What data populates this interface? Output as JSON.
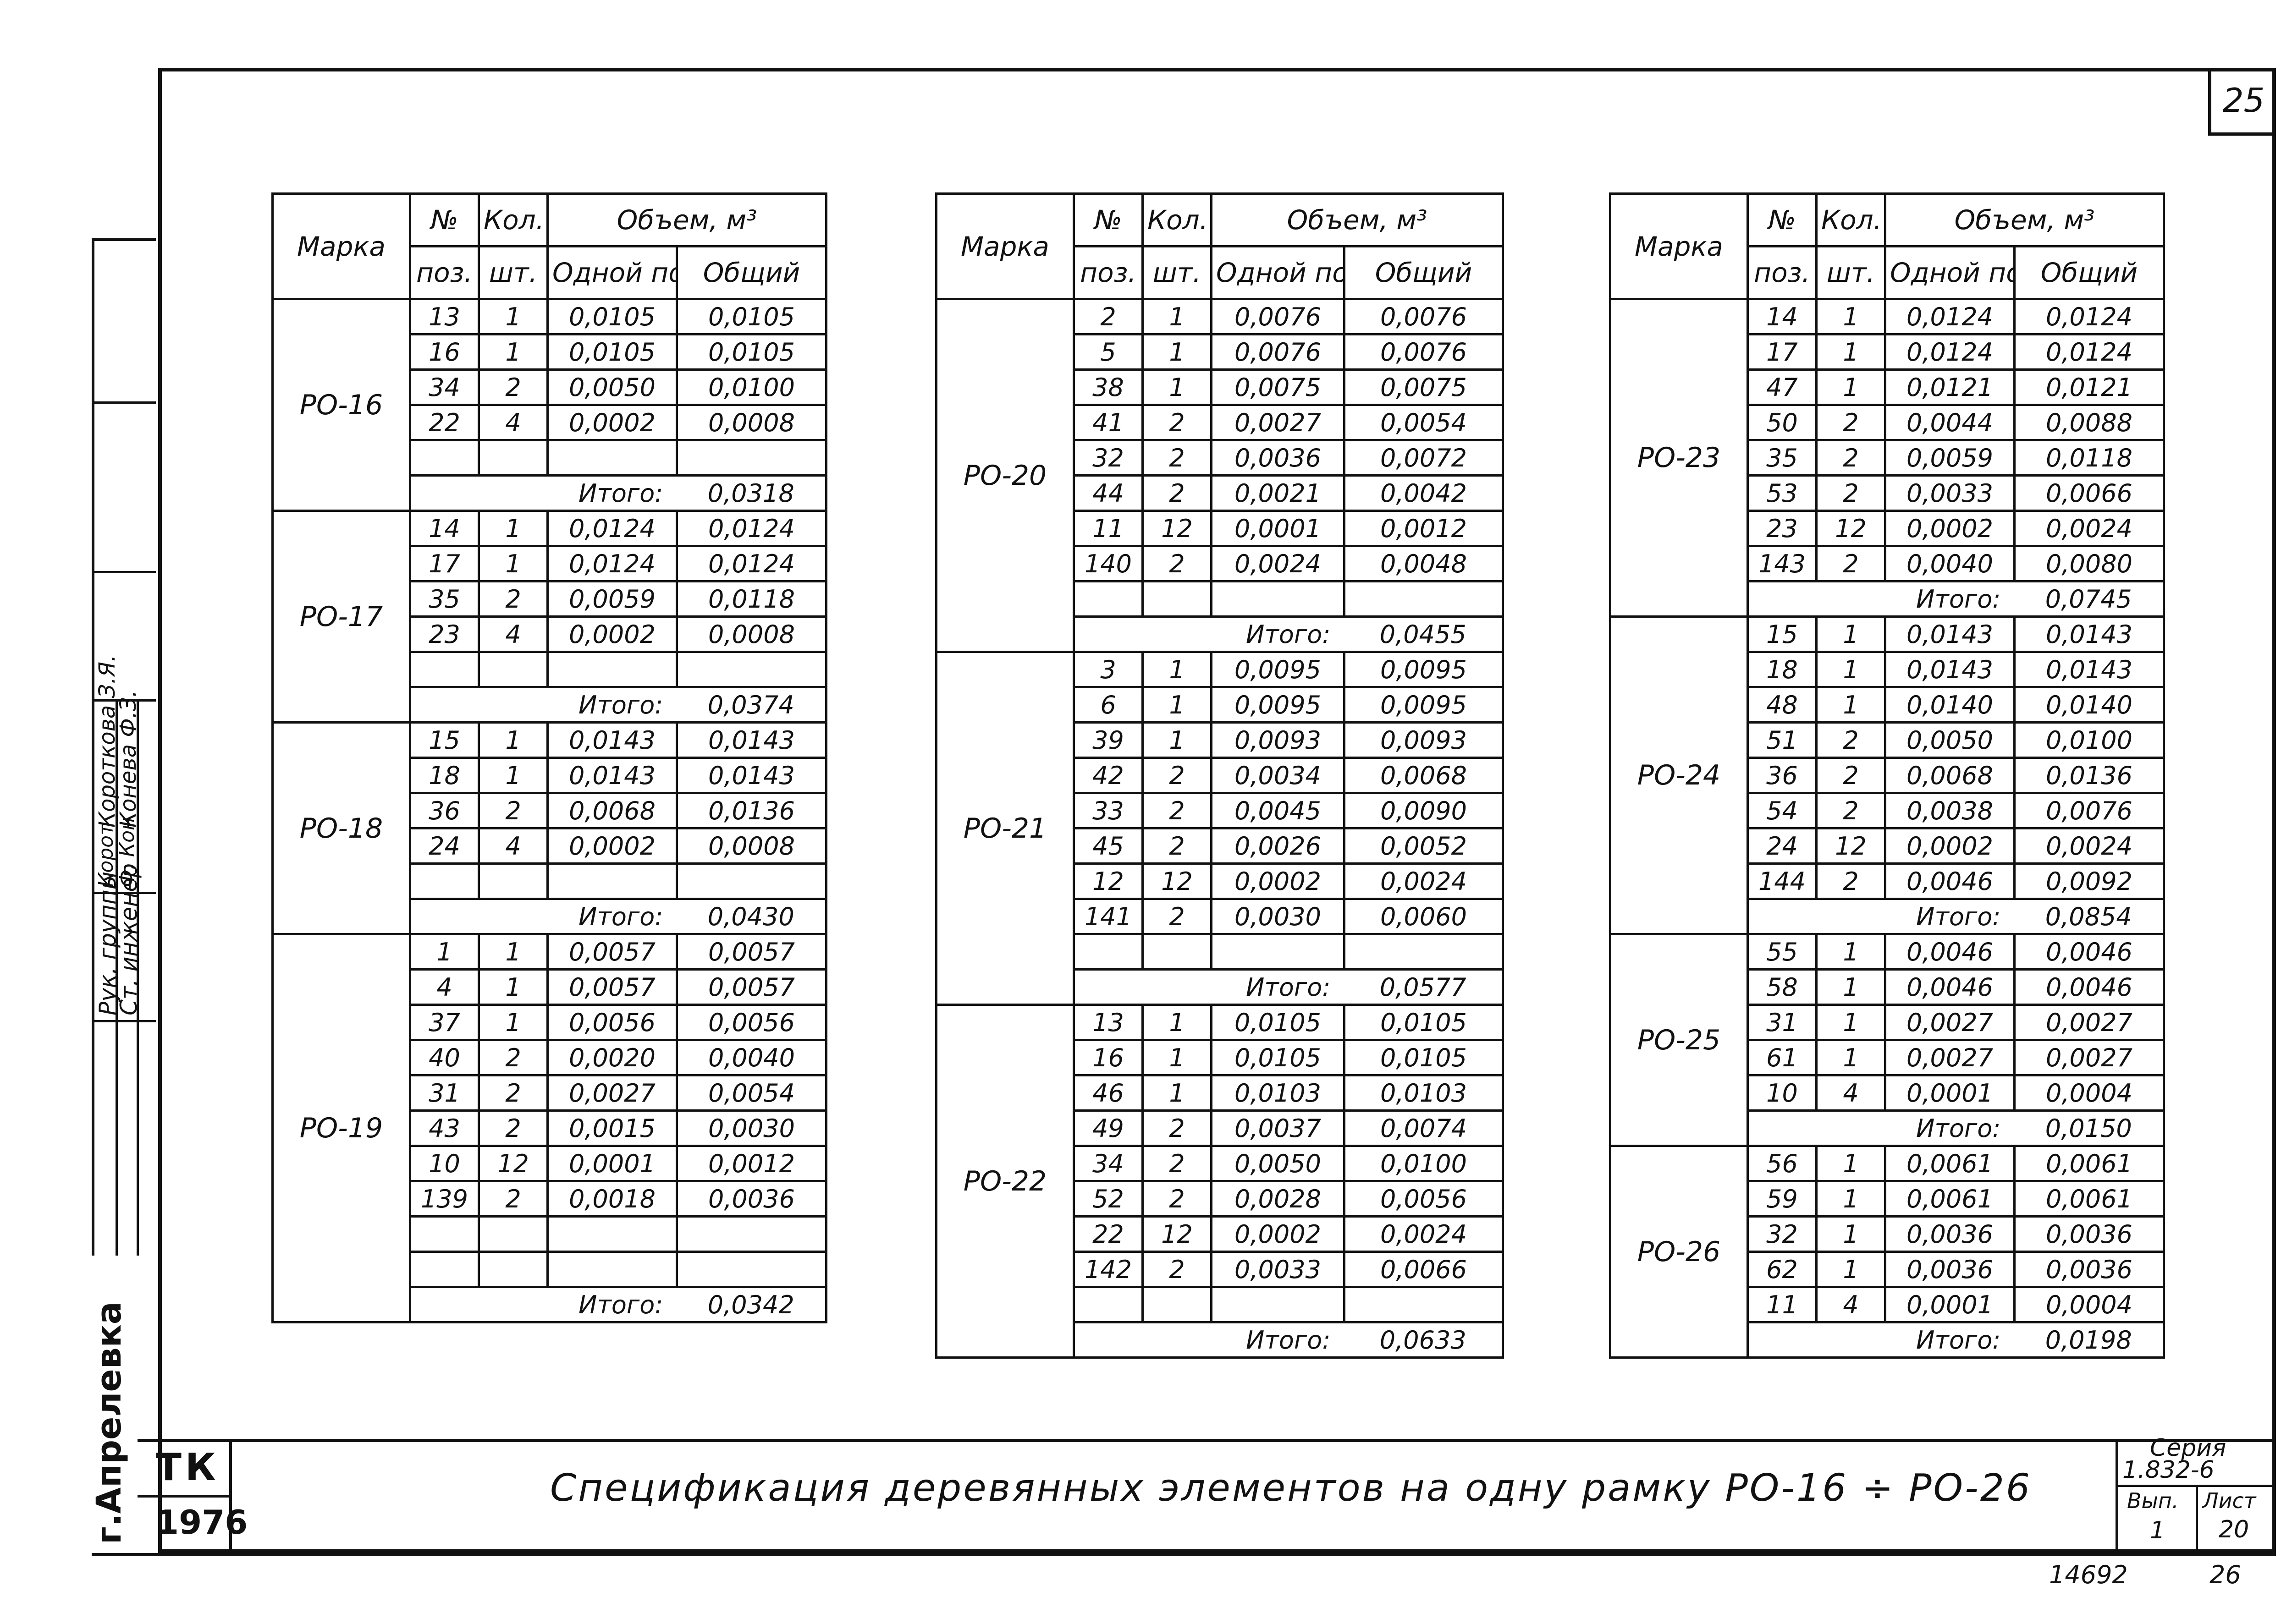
{
  "page_number": "25",
  "headers": {
    "mark": "Марка",
    "pos_top": "№",
    "pos_bottom": "поз.",
    "qty_top": "Кол.",
    "qty_bottom": "шт.",
    "volume": "Объем, м³",
    "one": "Одной поз.",
    "total": "Общий"
  },
  "total_label": "Итого:",
  "tables": [
    {
      "groups": [
        {
          "mark": "РО-16",
          "rows": [
            [
              "13",
              "1",
              "0,0105",
              "0,0105"
            ],
            [
              "16",
              "1",
              "0,0105",
              "0,0105"
            ],
            [
              "34",
              "2",
              "0,0050",
              "0,0100"
            ],
            [
              "22",
              "4",
              "0,0002",
              "0,0008"
            ],
            [
              "",
              "",
              "",
              ""
            ]
          ],
          "total": "0,0318"
        },
        {
          "mark": "РО-17",
          "rows": [
            [
              "14",
              "1",
              "0,0124",
              "0,0124"
            ],
            [
              "17",
              "1",
              "0,0124",
              "0,0124"
            ],
            [
              "35",
              "2",
              "0,0059",
              "0,0118"
            ],
            [
              "23",
              "4",
              "0,0002",
              "0,0008"
            ],
            [
              "",
              "",
              "",
              ""
            ]
          ],
          "total": "0,0374"
        },
        {
          "mark": "РО-18",
          "rows": [
            [
              "15",
              "1",
              "0,0143",
              "0,0143"
            ],
            [
              "18",
              "1",
              "0,0143",
              "0,0143"
            ],
            [
              "36",
              "2",
              "0,0068",
              "0,0136"
            ],
            [
              "24",
              "4",
              "0,0002",
              "0,0008"
            ],
            [
              "",
              "",
              "",
              ""
            ]
          ],
          "total": "0,0430"
        },
        {
          "mark": "РО-19",
          "rows": [
            [
              "1",
              "1",
              "0,0057",
              "0,0057"
            ],
            [
              "4",
              "1",
              "0,0057",
              "0,0057"
            ],
            [
              "37",
              "1",
              "0,0056",
              "0,0056"
            ],
            [
              "40",
              "2",
              "0,0020",
              "0,0040"
            ],
            [
              "31",
              "2",
              "0,0027",
              "0,0054"
            ],
            [
              "43",
              "2",
              "0,0015",
              "0,0030"
            ],
            [
              "10",
              "12",
              "0,0001",
              "0,0012"
            ],
            [
              "139",
              "2",
              "0,0018",
              "0,0036"
            ],
            [
              "",
              "",
              "",
              ""
            ],
            [
              "",
              "",
              "",
              ""
            ]
          ],
          "total": "0,0342"
        }
      ]
    },
    {
      "groups": [
        {
          "mark": "РО-20",
          "rows": [
            [
              "2",
              "1",
              "0,0076",
              "0,0076"
            ],
            [
              "5",
              "1",
              "0,0076",
              "0,0076"
            ],
            [
              "38",
              "1",
              "0,0075",
              "0,0075"
            ],
            [
              "41",
              "2",
              "0,0027",
              "0,0054"
            ],
            [
              "32",
              "2",
              "0,0036",
              "0,0072"
            ],
            [
              "44",
              "2",
              "0,0021",
              "0,0042"
            ],
            [
              "11",
              "12",
              "0,0001",
              "0,0012"
            ],
            [
              "140",
              "2",
              "0,0024",
              "0,0048"
            ],
            [
              "",
              "",
              "",
              ""
            ]
          ],
          "total": "0,0455"
        },
        {
          "mark": "РО-21",
          "rows": [
            [
              "3",
              "1",
              "0,0095",
              "0,0095"
            ],
            [
              "6",
              "1",
              "0,0095",
              "0,0095"
            ],
            [
              "39",
              "1",
              "0,0093",
              "0,0093"
            ],
            [
              "42",
              "2",
              "0,0034",
              "0,0068"
            ],
            [
              "33",
              "2",
              "0,0045",
              "0,0090"
            ],
            [
              "45",
              "2",
              "0,0026",
              "0,0052"
            ],
            [
              "12",
              "12",
              "0,0002",
              "0,0024"
            ],
            [
              "141",
              "2",
              "0,0030",
              "0,0060"
            ],
            [
              "",
              "",
              "",
              ""
            ]
          ],
          "total": "0,0577"
        },
        {
          "mark": "РО-22",
          "rows": [
            [
              "13",
              "1",
              "0,0105",
              "0,0105"
            ],
            [
              "16",
              "1",
              "0,0105",
              "0,0105"
            ],
            [
              "46",
              "1",
              "0,0103",
              "0,0103"
            ],
            [
              "49",
              "2",
              "0,0037",
              "0,0074"
            ],
            [
              "34",
              "2",
              "0,0050",
              "0,0100"
            ],
            [
              "52",
              "2",
              "0,0028",
              "0,0056"
            ],
            [
              "22",
              "12",
              "0,0002",
              "0,0024"
            ],
            [
              "142",
              "2",
              "0,0033",
              "0,0066"
            ],
            [
              "",
              "",
              "",
              ""
            ]
          ],
          "total": "0,0633"
        }
      ]
    },
    {
      "groups": [
        {
          "mark": "РО-23",
          "rows": [
            [
              "14",
              "1",
              "0,0124",
              "0,0124"
            ],
            [
              "17",
              "1",
              "0,0124",
              "0,0124"
            ],
            [
              "47",
              "1",
              "0,0121",
              "0,0121"
            ],
            [
              "50",
              "2",
              "0,0044",
              "0,0088"
            ],
            [
              "35",
              "2",
              "0,0059",
              "0,0118"
            ],
            [
              "53",
              "2",
              "0,0033",
              "0,0066"
            ],
            [
              "23",
              "12",
              "0,0002",
              "0,0024"
            ],
            [
              "143",
              "2",
              "0,0040",
              "0,0080"
            ]
          ],
          "total": "0,0745"
        },
        {
          "mark": "РО-24",
          "rows": [
            [
              "15",
              "1",
              "0,0143",
              "0,0143"
            ],
            [
              "18",
              "1",
              "0,0143",
              "0,0143"
            ],
            [
              "48",
              "1",
              "0,0140",
              "0,0140"
            ],
            [
              "51",
              "2",
              "0,0050",
              "0,0100"
            ],
            [
              "36",
              "2",
              "0,0068",
              "0,0136"
            ],
            [
              "54",
              "2",
              "0,0038",
              "0,0076"
            ],
            [
              "24",
              "12",
              "0,0002",
              "0,0024"
            ],
            [
              "144",
              "2",
              "0,0046",
              "0,0092"
            ]
          ],
          "total": "0,0854"
        },
        {
          "mark": "РО-25",
          "rows": [
            [
              "55",
              "1",
              "0,0046",
              "0,0046"
            ],
            [
              "58",
              "1",
              "0,0046",
              "0,0046"
            ],
            [
              "31",
              "1",
              "0,0027",
              "0,0027"
            ],
            [
              "61",
              "1",
              "0,0027",
              "0,0027"
            ],
            [
              "10",
              "4",
              "0,0001",
              "0,0004"
            ]
          ],
          "total": "0,0150"
        },
        {
          "mark": "РО-26",
          "rows": [
            [
              "56",
              "1",
              "0,0061",
              "0,0061"
            ],
            [
              "59",
              "1",
              "0,0061",
              "0,0061"
            ],
            [
              "32",
              "1",
              "0,0036",
              "0,0036"
            ],
            [
              "62",
              "1",
              "0,0036",
              "0,0036"
            ],
            [
              "11",
              "4",
              "0,0001",
              "0,0004"
            ]
          ],
          "total": "0,0198"
        }
      ]
    }
  ],
  "stamp": {
    "role1": "Рук. группы",
    "role2": "Ст. инженер",
    "name1": "Короткова З.Я.",
    "name2": "Конева Ф.З.",
    "city": "г.Апрелевка"
  },
  "title_block": {
    "org": "ТК",
    "year": "1976",
    "title": "Спецификация деревянных элементов на одну рамку РО-16 ÷ РО-26",
    "series_label": "Серия",
    "series_value": "1.832-6",
    "issue_label": "Вып.",
    "issue_value": "1",
    "sheet_label": "Лист",
    "sheet_value": "20"
  },
  "below_frame": {
    "inventory": "14692",
    "page": "26"
  }
}
